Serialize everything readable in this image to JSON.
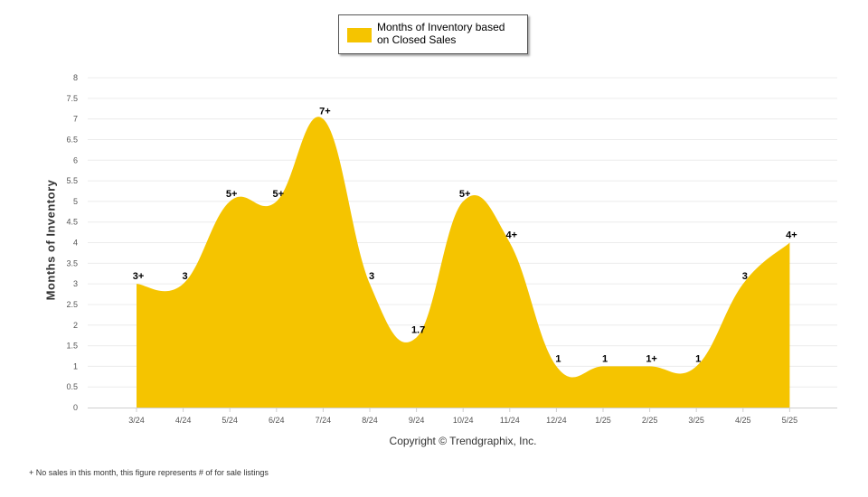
{
  "chart_data": {
    "type": "area",
    "categories": [
      "3/24",
      "4/24",
      "5/24",
      "6/24",
      "7/24",
      "8/24",
      "9/24",
      "10/24",
      "11/24",
      "12/24",
      "1/25",
      "2/25",
      "3/25",
      "4/25",
      "5/25"
    ],
    "series": [
      {
        "name": "Months of Inventory based on Closed Sales",
        "values": [
          3,
          3,
          5,
          5,
          7,
          3,
          1.7,
          5,
          4,
          1,
          1,
          1,
          1,
          3,
          4
        ],
        "labels": [
          "3+",
          "3",
          "5+",
          "5+",
          "7+",
          "3",
          "1.7",
          "5+",
          "4+",
          "1",
          "1",
          "1+",
          "1",
          "3",
          "4+"
        ],
        "color": "#f5c400"
      }
    ],
    "ylabel": "Months of Inventory",
    "ylim": [
      0,
      8
    ],
    "yticks": [
      "0",
      "0.5",
      "1",
      "1.5",
      "2",
      "2.5",
      "3",
      "3.5",
      "4",
      "4.5",
      "5",
      "5.5",
      "6",
      "6.5",
      "7",
      "7.5",
      "8"
    ],
    "grid": true,
    "legend_position": "top-center"
  },
  "legend": {
    "label_line1": "Months of Inventory based",
    "label_line2": "on Closed Sales"
  },
  "copyright": "Copyright © Trendgraphix, Inc.",
  "footnote": "+ No sales in this month, this figure represents # of for sale listings"
}
